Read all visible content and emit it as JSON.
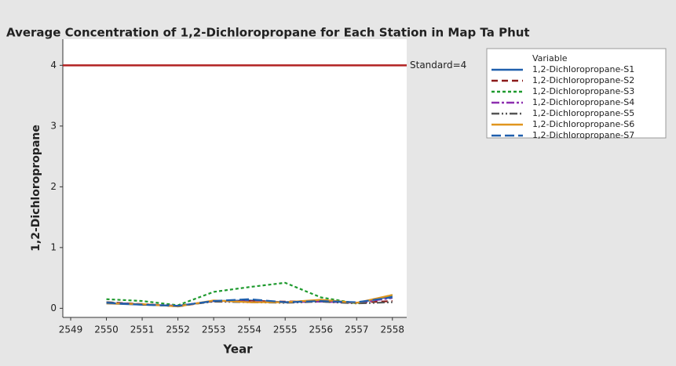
{
  "chart_data": {
    "type": "line",
    "title": "Average Concentration of 1,2-Dichloropropane for Each Station  in Map Ta Phut",
    "x_label": "Year",
    "y_label": "1,2-Dichloropropane",
    "legend_title": "Variable",
    "legend": "right",
    "x": [
      2550,
      2551,
      2552,
      2553,
      2554,
      2555,
      2556,
      2557,
      2558
    ],
    "xlim": [
      2548.78,
      2558.4
    ],
    "xticks": [
      2549,
      2550,
      2551,
      2552,
      2553,
      2554,
      2555,
      2556,
      2557,
      2558
    ],
    "ylim": [
      -0.15,
      4.43
    ],
    "yticks": [
      0,
      1,
      2,
      3,
      4
    ],
    "reference": {
      "value": 4,
      "label": "Standard=4",
      "color": "#b22222"
    },
    "series": [
      {
        "name": "1,2-Dichloropropane-S1",
        "color": "#1f5fad",
        "dash": "none",
        "values": [
          0.08,
          0.06,
          0.04,
          0.12,
          0.13,
          0.1,
          0.12,
          0.09,
          0.2
        ]
      },
      {
        "name": "1,2-Dichloropropane-S2",
        "color": "#8b1a1a",
        "dash": "8 5",
        "values": [
          0.1,
          0.07,
          0.03,
          0.12,
          0.12,
          0.11,
          0.12,
          0.09,
          0.12
        ]
      },
      {
        "name": "1,2-Dichloropropane-S3",
        "color": "#1e9a2e",
        "dash": "4 3",
        "values": [
          0.15,
          0.12,
          0.05,
          0.27,
          0.35,
          0.42,
          0.18,
          0.08,
          0.22
        ]
      },
      {
        "name": "1,2-Dichloropropane-S4",
        "color": "#8e2fb0",
        "dash": "10 3 3 3",
        "values": [
          0.09,
          0.07,
          0.04,
          0.12,
          0.11,
          0.1,
          0.11,
          0.09,
          0.17
        ]
      },
      {
        "name": "1,2-Dichloropropane-S5",
        "color": "#555555",
        "dash": "10 3 2 3 2 3",
        "values": [
          0.1,
          0.06,
          0.04,
          0.11,
          0.1,
          0.09,
          0.11,
          0.08,
          0.1
        ]
      },
      {
        "name": "1,2-Dichloropropane-S6",
        "color": "#e0951e",
        "dash": "none",
        "values": [
          0.08,
          0.07,
          0.03,
          0.13,
          0.1,
          0.1,
          0.14,
          0.09,
          0.22
        ]
      },
      {
        "name": "1,2-Dichloropropane-S7",
        "color": "#1f5fad",
        "dash": "12 5",
        "values": [
          0.09,
          0.06,
          0.04,
          0.12,
          0.15,
          0.1,
          0.12,
          0.1,
          0.18
        ]
      }
    ]
  }
}
